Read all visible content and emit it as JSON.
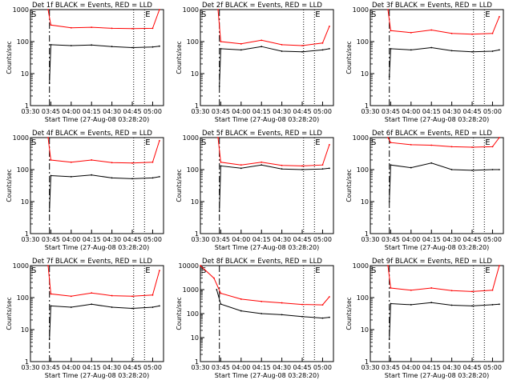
{
  "chart_data": [
    {
      "type": "line",
      "title": "Det 1f BLACK = Events, RED = LLD",
      "xlabel": "Start Time (27-Aug-08 03:28:20)",
      "ylabel": "Counts/sec",
      "x_ticks": [
        "03:30",
        "03:45",
        "04:00",
        "04:15",
        "04:30",
        "04:45",
        "05:00"
      ],
      "y_ticks": [
        "1",
        "10",
        "100",
        "1000"
      ],
      "y_scale": "log",
      "ylim": [
        1,
        1000
      ],
      "markers": [
        {
          "label": "S",
          "x": "03:30"
        },
        {
          "label": "E",
          "x": "04:54"
        }
      ],
      "dashed_line_x": "03:44",
      "dotted_lines_x": [
        "04:46",
        "04:54"
      ],
      "series": [
        {
          "name": "RED = LLD",
          "color": "#ff0000",
          "x": [
            "03:43",
            "03:45",
            "04:00",
            "04:15",
            "04:30",
            "04:45",
            "05:00",
            "05:05"
          ],
          "values": [
            1000,
            330,
            270,
            280,
            260,
            255,
            260,
            1000
          ]
        },
        {
          "name": "BLACK = Events",
          "color": "#000000",
          "x": [
            "03:44",
            "03:45",
            "04:00",
            "04:15",
            "04:30",
            "04:45",
            "05:00",
            "05:05"
          ],
          "values": [
            5,
            80,
            75,
            78,
            70,
            65,
            68,
            72
          ]
        }
      ]
    },
    {
      "type": "line",
      "title": "Det 2f BLACK = Events, RED = LLD",
      "xlabel": "Start Time (27-Aug-08 03:28:20)",
      "ylabel": "Counts/sec",
      "x_ticks": [
        "03:30",
        "03:45",
        "04:00",
        "04:15",
        "04:30",
        "04:45",
        "05:00"
      ],
      "y_ticks": [
        "1",
        "10",
        "100",
        "1000"
      ],
      "y_scale": "log",
      "ylim": [
        1,
        1000
      ],
      "markers": [
        {
          "label": "S",
          "x": "03:30"
        },
        {
          "label": "E",
          "x": "04:54"
        }
      ],
      "dashed_line_x": "03:44",
      "dotted_lines_x": [
        "04:46",
        "04:54"
      ],
      "series": [
        {
          "name": "RED = LLD",
          "color": "#ff0000",
          "x": [
            "03:43",
            "03:45",
            "04:00",
            "04:15",
            "04:30",
            "04:45",
            "05:00",
            "05:05"
          ],
          "values": [
            1000,
            100,
            85,
            110,
            80,
            75,
            90,
            300
          ]
        },
        {
          "name": "BLACK = Events",
          "color": "#000000",
          "x": [
            "03:44",
            "03:45",
            "04:00",
            "04:15",
            "04:30",
            "04:45",
            "05:00",
            "05:05"
          ],
          "values": [
            4,
            60,
            55,
            70,
            50,
            48,
            55,
            60
          ]
        }
      ]
    },
    {
      "type": "line",
      "title": "Det 3f BLACK = Events, RED = LLD",
      "xlabel": "Start Time (27-Aug-08 03:28:20)",
      "ylabel": "Counts/sec",
      "x_ticks": [
        "03:30",
        "03:45",
        "04:00",
        "04:15",
        "04:30",
        "04:45",
        "05:00"
      ],
      "y_ticks": [
        "1",
        "10",
        "100",
        "1000"
      ],
      "y_scale": "log",
      "ylim": [
        1,
        1000
      ],
      "markers": [
        {
          "label": "S",
          "x": "03:30"
        },
        {
          "label": "E",
          "x": "04:54"
        }
      ],
      "dashed_line_x": "03:44",
      "dotted_lines_x": [
        "04:46",
        "04:54"
      ],
      "series": [
        {
          "name": "RED = LLD",
          "color": "#ff0000",
          "x": [
            "03:43",
            "03:45",
            "04:00",
            "04:15",
            "04:30",
            "04:45",
            "05:00",
            "05:05"
          ],
          "values": [
            1000,
            220,
            190,
            230,
            180,
            170,
            180,
            600
          ]
        },
        {
          "name": "BLACK = Events",
          "color": "#000000",
          "x": [
            "03:44",
            "03:45",
            "04:00",
            "04:15",
            "04:30",
            "04:45",
            "05:00",
            "05:05"
          ],
          "values": [
            8,
            60,
            55,
            65,
            52,
            48,
            50,
            55
          ]
        }
      ]
    },
    {
      "type": "line",
      "title": "Det 4f BLACK = Events, RED = LLD",
      "xlabel": "Start Time (27-Aug-08 03:28:20)",
      "ylabel": "Counts/sec",
      "x_ticks": [
        "03:30",
        "03:45",
        "04:00",
        "04:15",
        "04:30",
        "04:45",
        "05:00"
      ],
      "y_ticks": [
        "1",
        "10",
        "100",
        "1000"
      ],
      "y_scale": "log",
      "ylim": [
        1,
        1000
      ],
      "markers": [
        {
          "label": "S",
          "x": "03:30"
        },
        {
          "label": "E",
          "x": "04:54"
        }
      ],
      "dashed_line_x": "03:44",
      "dotted_lines_x": [
        "04:46",
        "04:54"
      ],
      "series": [
        {
          "name": "RED = LLD",
          "color": "#ff0000",
          "x": [
            "03:43",
            "03:45",
            "04:00",
            "04:15",
            "04:30",
            "04:45",
            "05:00",
            "05:05"
          ],
          "values": [
            1000,
            200,
            170,
            200,
            165,
            160,
            170,
            800
          ]
        },
        {
          "name": "BLACK = Events",
          "color": "#000000",
          "x": [
            "03:44",
            "03:45",
            "04:00",
            "04:15",
            "04:30",
            "04:45",
            "05:00",
            "05:05"
          ],
          "values": [
            5,
            65,
            60,
            68,
            55,
            52,
            55,
            60
          ]
        }
      ]
    },
    {
      "type": "line",
      "title": "Det 5f BLACK = Events, RED = LLD",
      "xlabel": "Start Time (27-Aug-08 03:28:20)",
      "ylabel": "Counts/sec",
      "x_ticks": [
        "03:30",
        "03:45",
        "04:00",
        "04:15",
        "04:30",
        "04:45",
        "05:00"
      ],
      "y_ticks": [
        "1",
        "10",
        "100",
        "1000"
      ],
      "y_scale": "log",
      "ylim": [
        1,
        1000
      ],
      "markers": [
        {
          "label": "S",
          "x": "03:30"
        },
        {
          "label": "E",
          "x": "04:54"
        }
      ],
      "dashed_line_x": "03:44",
      "dotted_lines_x": [
        "04:46",
        "04:54"
      ],
      "series": [
        {
          "name": "RED = LLD",
          "color": "#ff0000",
          "x": [
            "03:43",
            "03:45",
            "04:00",
            "04:15",
            "04:30",
            "04:45",
            "05:00",
            "05:05"
          ],
          "values": [
            1000,
            170,
            140,
            170,
            135,
            130,
            140,
            600
          ]
        },
        {
          "name": "BLACK = Events",
          "color": "#000000",
          "x": [
            "03:44",
            "03:45",
            "04:00",
            "04:15",
            "04:30",
            "04:45",
            "05:00",
            "05:05"
          ],
          "values": [
            5,
            130,
            110,
            140,
            105,
            100,
            105,
            110
          ]
        }
      ]
    },
    {
      "type": "line",
      "title": "Det 6f BLACK = Events, RED = LLD",
      "xlabel": "Start Time (27-Aug-08 03:28:20)",
      "ylabel": "Counts/sec",
      "x_ticks": [
        "03:30",
        "03:45",
        "04:00",
        "04:15",
        "04:30",
        "04:45",
        "05:00"
      ],
      "y_ticks": [
        "1",
        "10",
        "100",
        "1000"
      ],
      "y_scale": "log",
      "ylim": [
        1,
        1000
      ],
      "markers": [
        {
          "label": "S",
          "x": "03:30"
        },
        {
          "label": "E",
          "x": "04:54"
        }
      ],
      "dashed_line_x": "03:44",
      "dotted_lines_x": [
        "04:46",
        "04:54"
      ],
      "series": [
        {
          "name": "RED = LLD",
          "color": "#ff0000",
          "x": [
            "03:43",
            "03:45",
            "04:00",
            "04:15",
            "04:30",
            "04:45",
            "05:00",
            "05:05"
          ],
          "values": [
            1000,
            700,
            600,
            580,
            520,
            500,
            520,
            1000
          ]
        },
        {
          "name": "BLACK = Events",
          "color": "#000000",
          "x": [
            "03:44",
            "03:45",
            "04:00",
            "04:15",
            "04:30",
            "04:45",
            "05:00",
            "05:05"
          ],
          "values": [
            10,
            140,
            115,
            160,
            100,
            95,
            100,
            100
          ]
        }
      ]
    },
    {
      "type": "line",
      "title": "Det 7f BLACK = Events, RED = LLD",
      "xlabel": "Start Time (27-Aug-08 03:28:20)",
      "ylabel": "Counts/sec",
      "x_ticks": [
        "03:30",
        "03:45",
        "04:00",
        "04:15",
        "04:30",
        "04:45",
        "05:00"
      ],
      "y_ticks": [
        "1",
        "10",
        "100",
        "1000"
      ],
      "y_scale": "log",
      "ylim": [
        1,
        1000
      ],
      "markers": [
        {
          "label": "S",
          "x": "03:30"
        },
        {
          "label": "E",
          "x": "04:54"
        }
      ],
      "dashed_line_x": "03:44",
      "dotted_lines_x": [
        "04:46",
        "04:54"
      ],
      "series": [
        {
          "name": "RED = LLD",
          "color": "#ff0000",
          "x": [
            "03:43",
            "03:45",
            "04:00",
            "04:15",
            "04:30",
            "04:45",
            "05:00",
            "05:05"
          ],
          "values": [
            1000,
            130,
            110,
            140,
            115,
            110,
            120,
            700
          ]
        },
        {
          "name": "BLACK = Events",
          "color": "#000000",
          "x": [
            "03:44",
            "03:45",
            "04:00",
            "04:15",
            "04:30",
            "04:45",
            "05:00",
            "05:05"
          ],
          "values": [
            5,
            55,
            50,
            62,
            50,
            46,
            50,
            55
          ]
        }
      ]
    },
    {
      "type": "line",
      "title": "Det 8f BLACK = Events, RED = LLD",
      "xlabel": "Start Time (27-Aug-08 03:28:20)",
      "ylabel": "Counts/sec",
      "x_ticks": [
        "03:30",
        "03:45",
        "04:00",
        "04:15",
        "04:30",
        "04:45",
        "05:00"
      ],
      "y_ticks": [
        "1",
        "10",
        "100",
        "1000",
        "10000"
      ],
      "y_scale": "log",
      "ylim": [
        1,
        10000
      ],
      "markers": [
        {
          "label": "S",
          "x": "03:30"
        },
        {
          "label": "E",
          "x": "04:54"
        }
      ],
      "dashed_line_x": "03:44",
      "dotted_lines_x": [
        "04:46",
        "04:54"
      ],
      "series": [
        {
          "name": "RED = LLD",
          "color": "#ff0000",
          "x": [
            "03:30",
            "03:40",
            "03:45",
            "04:00",
            "04:15",
            "04:30",
            "04:45",
            "05:00",
            "05:05"
          ],
          "values": [
            10000,
            3000,
            700,
            400,
            320,
            280,
            240,
            230,
            500
          ]
        },
        {
          "name": "BLACK = Events",
          "color": "#000000",
          "x": [
            "03:42",
            "03:45",
            "04:00",
            "04:15",
            "04:30",
            "04:45",
            "05:00",
            "05:05"
          ],
          "values": [
            1000,
            250,
            130,
            100,
            90,
            75,
            65,
            70
          ]
        }
      ]
    },
    {
      "type": "line",
      "title": "Det 9f BLACK = Events, RED = LLD",
      "xlabel": "Start Time (27-Aug-08 03:28:20)",
      "ylabel": "Counts/sec",
      "x_ticks": [
        "03:30",
        "03:45",
        "04:00",
        "04:15",
        "04:30",
        "04:45",
        "05:00"
      ],
      "y_ticks": [
        "1",
        "10",
        "100",
        "1000"
      ],
      "y_scale": "log",
      "ylim": [
        1,
        1000
      ],
      "markers": [
        {
          "label": "S",
          "x": "03:30"
        },
        {
          "label": "E",
          "x": "04:54"
        }
      ],
      "dashed_line_x": "03:44",
      "dotted_lines_x": [
        "04:46",
        "04:54"
      ],
      "series": [
        {
          "name": "RED = LLD",
          "color": "#ff0000",
          "x": [
            "03:43",
            "03:45",
            "04:00",
            "04:15",
            "04:30",
            "04:45",
            "05:00",
            "05:05"
          ],
          "values": [
            1000,
            200,
            170,
            200,
            165,
            155,
            170,
            1000
          ]
        },
        {
          "name": "BLACK = Events",
          "color": "#000000",
          "x": [
            "03:44",
            "03:45",
            "04:00",
            "04:15",
            "04:30",
            "04:45",
            "05:00",
            "05:05"
          ],
          "values": [
            5,
            65,
            60,
            70,
            58,
            55,
            60,
            62
          ]
        }
      ]
    }
  ]
}
